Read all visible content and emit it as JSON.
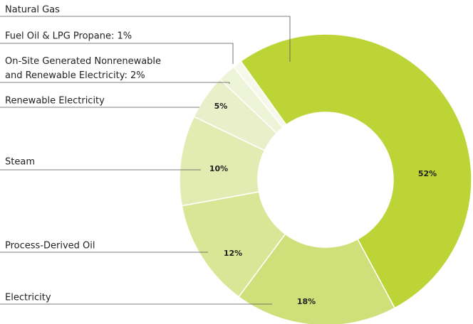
{
  "chart_data": {
    "type": "donut",
    "categories": [
      "Natural Gas",
      "Electricity",
      "Process-Derived Oil",
      "Steam",
      "Renewable Electricity",
      "On-Site Generated Nonrenewable\nand Renewable Electricity:  2%",
      "Fuel Oil & LPG Propane:  1%"
    ],
    "values": [
      52,
      18,
      12,
      10,
      5,
      2,
      1
    ],
    "value_labels": [
      "52%",
      "18%",
      "12%",
      "10%",
      "5%",
      null,
      null
    ],
    "colors": [
      "#bcd435",
      "#cfe07a",
      "#d8e696",
      "#e2ecb2",
      "#e9f0c9",
      "#eef4d8",
      "#f6f9ea"
    ]
  }
}
